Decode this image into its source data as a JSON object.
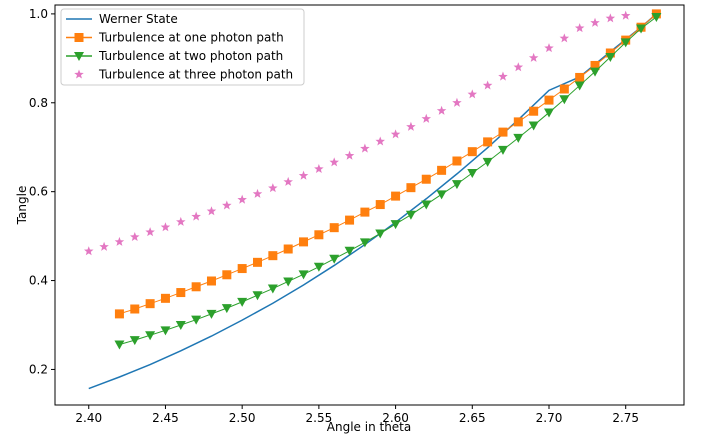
{
  "chart_data": {
    "type": "line",
    "xlabel": "Angle in theta",
    "ylabel": "Tangle",
    "xlim": [
      2.378,
      2.788
    ],
    "ylim": [
      0.12,
      1.02
    ],
    "xticks": [
      "2.40",
      "2.45",
      "2.50",
      "2.55",
      "2.60",
      "2.65",
      "2.70",
      "2.75"
    ],
    "yticks": [
      "0.2",
      "0.4",
      "0.6",
      "0.8",
      "1.0"
    ],
    "grid": false,
    "legend_position": "upper-left",
    "series": [
      {
        "name": "Werner State",
        "color": "#1f77b4",
        "marker": "none",
        "x": [
          2.4,
          2.42,
          2.44,
          2.46,
          2.48,
          2.5,
          2.52,
          2.54,
          2.56,
          2.58,
          2.6,
          2.62,
          2.64,
          2.66,
          2.68,
          2.7,
          2.72,
          2.74,
          2.76,
          2.77
        ],
        "y": [
          0.157,
          0.183,
          0.211,
          0.242,
          0.275,
          0.311,
          0.349,
          0.39,
          0.434,
          0.481,
          0.531,
          0.584,
          0.64,
          0.699,
          0.762,
          0.828,
          0.858,
          0.915,
          0.97,
          1.0
        ]
      },
      {
        "name": "Turbulence at one photon path",
        "color": "#ff7f0e",
        "marker": "square",
        "x": [
          2.42,
          2.43,
          2.44,
          2.45,
          2.46,
          2.47,
          2.48,
          2.49,
          2.5,
          2.51,
          2.52,
          2.53,
          2.54,
          2.55,
          2.56,
          2.57,
          2.58,
          2.59,
          2.6,
          2.61,
          2.62,
          2.63,
          2.64,
          2.65,
          2.66,
          2.67,
          2.68,
          2.69,
          2.7,
          2.71,
          2.72,
          2.73,
          2.74,
          2.75,
          2.76,
          2.77
        ],
        "y": [
          0.325,
          0.336,
          0.348,
          0.36,
          0.373,
          0.386,
          0.399,
          0.413,
          0.427,
          0.441,
          0.456,
          0.471,
          0.487,
          0.503,
          0.519,
          0.536,
          0.554,
          0.571,
          0.59,
          0.609,
          0.628,
          0.648,
          0.669,
          0.69,
          0.712,
          0.734,
          0.757,
          0.781,
          0.806,
          0.831,
          0.857,
          0.884,
          0.912,
          0.941,
          0.97,
          1.0
        ]
      },
      {
        "name": "Turbulence at two photon path",
        "color": "#2ca02c",
        "marker": "triangle-down",
        "x": [
          2.42,
          2.43,
          2.44,
          2.45,
          2.46,
          2.47,
          2.48,
          2.49,
          2.5,
          2.51,
          2.52,
          2.53,
          2.54,
          2.55,
          2.56,
          2.57,
          2.58,
          2.59,
          2.6,
          2.61,
          2.62,
          2.63,
          2.64,
          2.65,
          2.66,
          2.67,
          2.68,
          2.69,
          2.7,
          2.71,
          2.72,
          2.73,
          2.74,
          2.75,
          2.76,
          2.77
        ],
        "y": [
          0.256,
          0.266,
          0.277,
          0.288,
          0.3,
          0.312,
          0.325,
          0.338,
          0.352,
          0.367,
          0.382,
          0.398,
          0.414,
          0.431,
          0.449,
          0.467,
          0.486,
          0.506,
          0.527,
          0.548,
          0.571,
          0.594,
          0.617,
          0.642,
          0.667,
          0.694,
          0.721,
          0.749,
          0.778,
          0.808,
          0.839,
          0.87,
          0.903,
          0.936,
          0.967,
          0.993
        ]
      },
      {
        "name": "Turbulence at three photon path",
        "color": "#e377c2",
        "marker": "star",
        "x": [
          2.4,
          2.41,
          2.42,
          2.43,
          2.44,
          2.45,
          2.46,
          2.47,
          2.48,
          2.49,
          2.5,
          2.51,
          2.52,
          2.53,
          2.54,
          2.55,
          2.56,
          2.57,
          2.58,
          2.59,
          2.6,
          2.61,
          2.62,
          2.63,
          2.64,
          2.65,
          2.66,
          2.67,
          2.68,
          2.69,
          2.7,
          2.71,
          2.72,
          2.73,
          2.74,
          2.75
        ],
        "y": [
          0.466,
          0.476,
          0.487,
          0.498,
          0.509,
          0.52,
          0.532,
          0.544,
          0.556,
          0.569,
          0.582,
          0.595,
          0.608,
          0.622,
          0.636,
          0.651,
          0.666,
          0.681,
          0.697,
          0.713,
          0.729,
          0.746,
          0.764,
          0.782,
          0.8,
          0.819,
          0.839,
          0.859,
          0.88,
          0.901,
          0.923,
          0.945,
          0.968,
          0.98,
          0.99,
          0.996
        ]
      }
    ]
  }
}
